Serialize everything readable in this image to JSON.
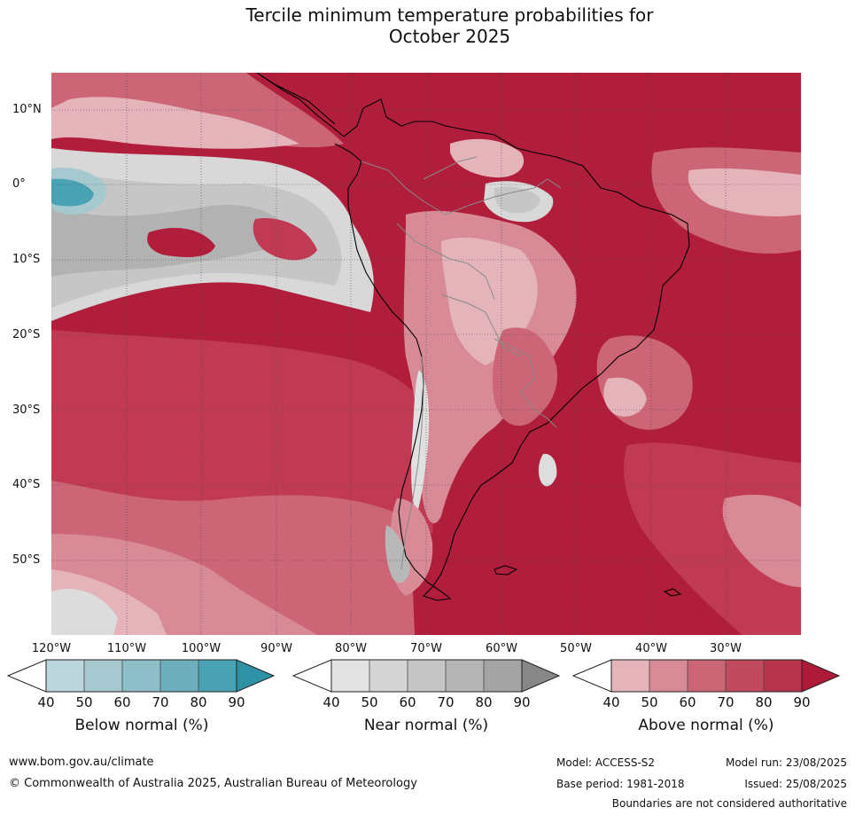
{
  "title_line1": "Tercile minimum temperature probabilities for",
  "title_line2": "October 2025",
  "map": {
    "projection": "equirectangular",
    "lon_range": [
      "120°W",
      "20°W"
    ],
    "lat_range": [
      "15°N",
      "60°S"
    ],
    "lat_labels": [
      "10°N",
      "0°",
      "10°S",
      "20°S",
      "30°S",
      "40°S",
      "50°S"
    ],
    "lon_labels": [
      "120°W",
      "110°W",
      "100°W",
      "90°W",
      "80°W",
      "70°W",
      "60°W",
      "50°W",
      "40°W",
      "30°W"
    ],
    "colors": {
      "above_90": "#b01e3c",
      "above_80": "#c03a54",
      "above_70": "#cc6575",
      "above_60": "#d88b96",
      "above_50": "#e4b4ba",
      "near_60": "#c6c6c6",
      "near_70": "#b2b2b2",
      "near_50": "#d8d8d8",
      "below_50": "#a6c9d0",
      "below_80": "#4aa3b5",
      "coast": "#000000",
      "borders": "#8a8a8a"
    }
  },
  "colorbars": [
    {
      "name": "Below normal (%)",
      "ticks": [
        "40",
        "50",
        "60",
        "70",
        "80",
        "90"
      ],
      "colors": [
        "#bcd6dd",
        "#a6c9d0",
        "#8ebec8",
        "#6eafbe",
        "#4aa3b5",
        "#2e91a6"
      ]
    },
    {
      "name": "Near normal (%)",
      "ticks": [
        "40",
        "50",
        "60",
        "70",
        "80",
        "90"
      ],
      "colors": [
        "#e3e3e3",
        "#d5d5d5",
        "#c6c6c6",
        "#b5b5b5",
        "#a4a4a4",
        "#878787"
      ]
    },
    {
      "name": "Above normal (%)",
      "ticks": [
        "40",
        "50",
        "60",
        "70",
        "80",
        "90"
      ],
      "colors": [
        "#e4b4ba",
        "#d88b96",
        "#cc6575",
        "#c24a5e",
        "#b8344c",
        "#ad1a38"
      ]
    }
  ],
  "footer": {
    "url": "www.bom.gov.au/climate",
    "copyright": "© Commonwealth of Australia 2025, Australian Bureau of Meteorology",
    "model": "Model: ACCESS-S2",
    "base_period": "Base period: 1981-2018",
    "model_run": "Model run: 23/08/2025",
    "issued": "Issued: 25/08/2025",
    "disclaimer": "Boundaries are not considered authoritative"
  }
}
